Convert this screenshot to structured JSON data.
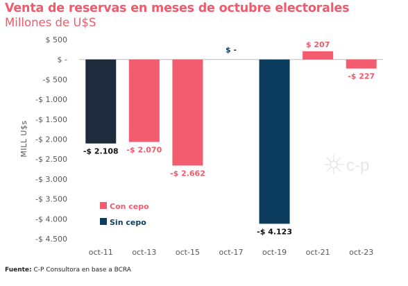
{
  "title": "Venta de reservas en meses de octubre electorales",
  "subtitle": "Millones de U$S",
  "source_label": "Fuente:",
  "source_text": "C-P Consultora en base a BCRA",
  "watermark": "c-p",
  "colors": {
    "title": "#f05a6b",
    "con_cepo": "#f25c6e",
    "sin_cepo": "#0c3d5f",
    "oct11": "#1d2b3c",
    "positive_label": "#f05a6b",
    "negative_label": "#f05a6b"
  },
  "chart_data": {
    "type": "bar",
    "title": "Venta de reservas en meses de octubre electorales",
    "subtitle": "Millones de U$S",
    "ylabel": "MILL U$s",
    "xlabel": "",
    "ylim": [
      -4500,
      500
    ],
    "yticks": [
      500,
      0,
      -500,
      -1000,
      -1500,
      -2000,
      -2500,
      -3000,
      -3500,
      -4000,
      -4500
    ],
    "ytick_labels": [
      "$ 500",
      "$ -",
      "-$ 500",
      "-$ 1.000",
      "-$ 1.500",
      "-$ 2.000",
      "-$ 2.500",
      "-$ 3.000",
      "-$ 3.500",
      "-$ 4.000",
      "-$ 4.500"
    ],
    "categories": [
      "oct-11",
      "oct-13",
      "oct-15",
      "oct-17",
      "oct-19",
      "oct-21",
      "oct-23"
    ],
    "values": [
      -2108,
      -2070,
      -2662,
      0,
      -4123,
      207,
      -227
    ],
    "data_labels": [
      "-$ 2.108",
      "-$ 2.070",
      "-$ 2.662",
      "$ -",
      "-$ 4.123",
      "$ 207",
      "-$ 227"
    ],
    "bar_colors": [
      "#1d2b3c",
      "#f25c6e",
      "#f25c6e",
      "#f25c6e",
      "#0c3d5f",
      "#f25c6e",
      "#f25c6e"
    ],
    "label_colors": [
      "#111111",
      "#f05a6b",
      "#f05a6b",
      "#0c3d5f",
      "#111111",
      "#f05a6b",
      "#f05a6b"
    ],
    "legend": [
      {
        "name": "Con cepo",
        "color": "#f25c6e"
      },
      {
        "name": "Sin cepo",
        "color": "#0c3d5f"
      }
    ],
    "legend_position": "bottom-left",
    "grid": false
  }
}
